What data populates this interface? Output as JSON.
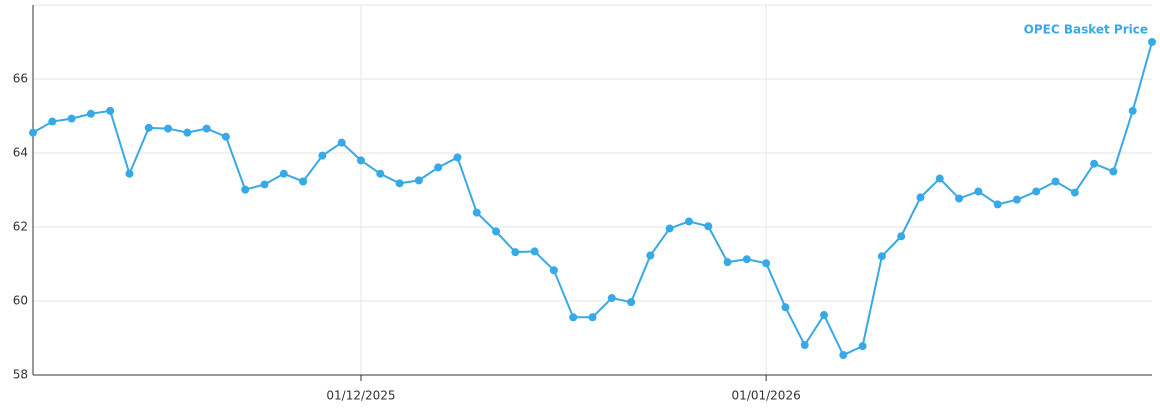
{
  "chart_data": {
    "type": "line",
    "categories": [
      null,
      null,
      null,
      null,
      null,
      null,
      null,
      null,
      null,
      null,
      null,
      null,
      null,
      null,
      null,
      null,
      null,
      "01/12/2025",
      null,
      null,
      null,
      null,
      null,
      null,
      null,
      null,
      null,
      null,
      null,
      null,
      null,
      null,
      null,
      null,
      null,
      null,
      null,
      null,
      "01/01/2026",
      null,
      null,
      null,
      null,
      null,
      null,
      null,
      null,
      null,
      null,
      null,
      null,
      null,
      null,
      null,
      null,
      null,
      null,
      null,
      null
    ],
    "series": [
      {
        "name": "OPEC Basket Price",
        "color": "#36a9e6",
        "values": [
          64.55,
          64.85,
          64.93,
          65.06,
          65.14,
          63.44,
          64.68,
          64.66,
          64.55,
          64.66,
          64.44,
          63.01,
          63.15,
          63.44,
          63.23,
          63.93,
          64.28,
          63.8,
          63.44,
          63.18,
          63.26,
          63.61,
          63.88,
          62.39,
          61.88,
          61.32,
          61.34,
          60.83,
          59.56,
          59.56,
          60.08,
          59.97,
          61.23,
          61.96,
          62.15,
          62.02,
          61.05,
          61.13,
          61.02,
          59.83,
          58.81,
          59.62,
          58.54,
          58.78,
          61.21,
          61.75,
          62.8,
          63.31,
          62.77,
          62.96,
          62.61,
          62.74,
          62.96,
          63.23,
          62.93,
          63.71,
          63.5,
          65.14,
          67.0
        ]
      }
    ],
    "ylim": [
      58,
      68
    ],
    "yticks": [
      58,
      60,
      62,
      64,
      66
    ],
    "grid": true
  }
}
